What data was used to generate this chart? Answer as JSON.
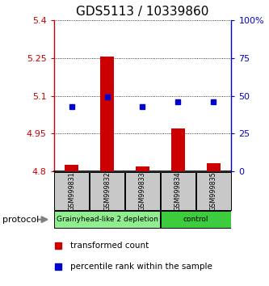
{
  "title": "GDS5113 / 10339860",
  "samples": [
    "GSM999831",
    "GSM999832",
    "GSM999833",
    "GSM999834",
    "GSM999835"
  ],
  "transformed_counts": [
    4.826,
    5.255,
    4.822,
    4.972,
    4.832
  ],
  "percentile_ranks": [
    43,
    49,
    43,
    46,
    46
  ],
  "ylim_left": [
    4.8,
    5.4
  ],
  "ylim_right": [
    0,
    100
  ],
  "yticks_left": [
    4.8,
    4.95,
    5.1,
    5.25,
    5.4
  ],
  "ytick_labels_left": [
    "4.8",
    "4.95",
    "5.1",
    "5.25",
    "5.4"
  ],
  "yticks_right": [
    0,
    25,
    50,
    75,
    100
  ],
  "ytick_labels_right": [
    "0",
    "25",
    "50",
    "75",
    "100%"
  ],
  "groups": [
    {
      "label": "Grainyhead-like 2 depletion",
      "samples": [
        0,
        1,
        2
      ],
      "color": "#90ee90"
    },
    {
      "label": "control",
      "samples": [
        3,
        4
      ],
      "color": "#3dcc3d"
    }
  ],
  "bar_color": "#cc0000",
  "dot_color": "#0000cc",
  "bar_bottom": 4.8,
  "background_color": "#ffffff",
  "sample_box_color": "#c8c8c8",
  "protocol_label": "protocol",
  "title_fontsize": 11,
  "tick_fontsize": 8,
  "left_axis_color": "#cc0000",
  "right_axis_color": "#0000cc"
}
